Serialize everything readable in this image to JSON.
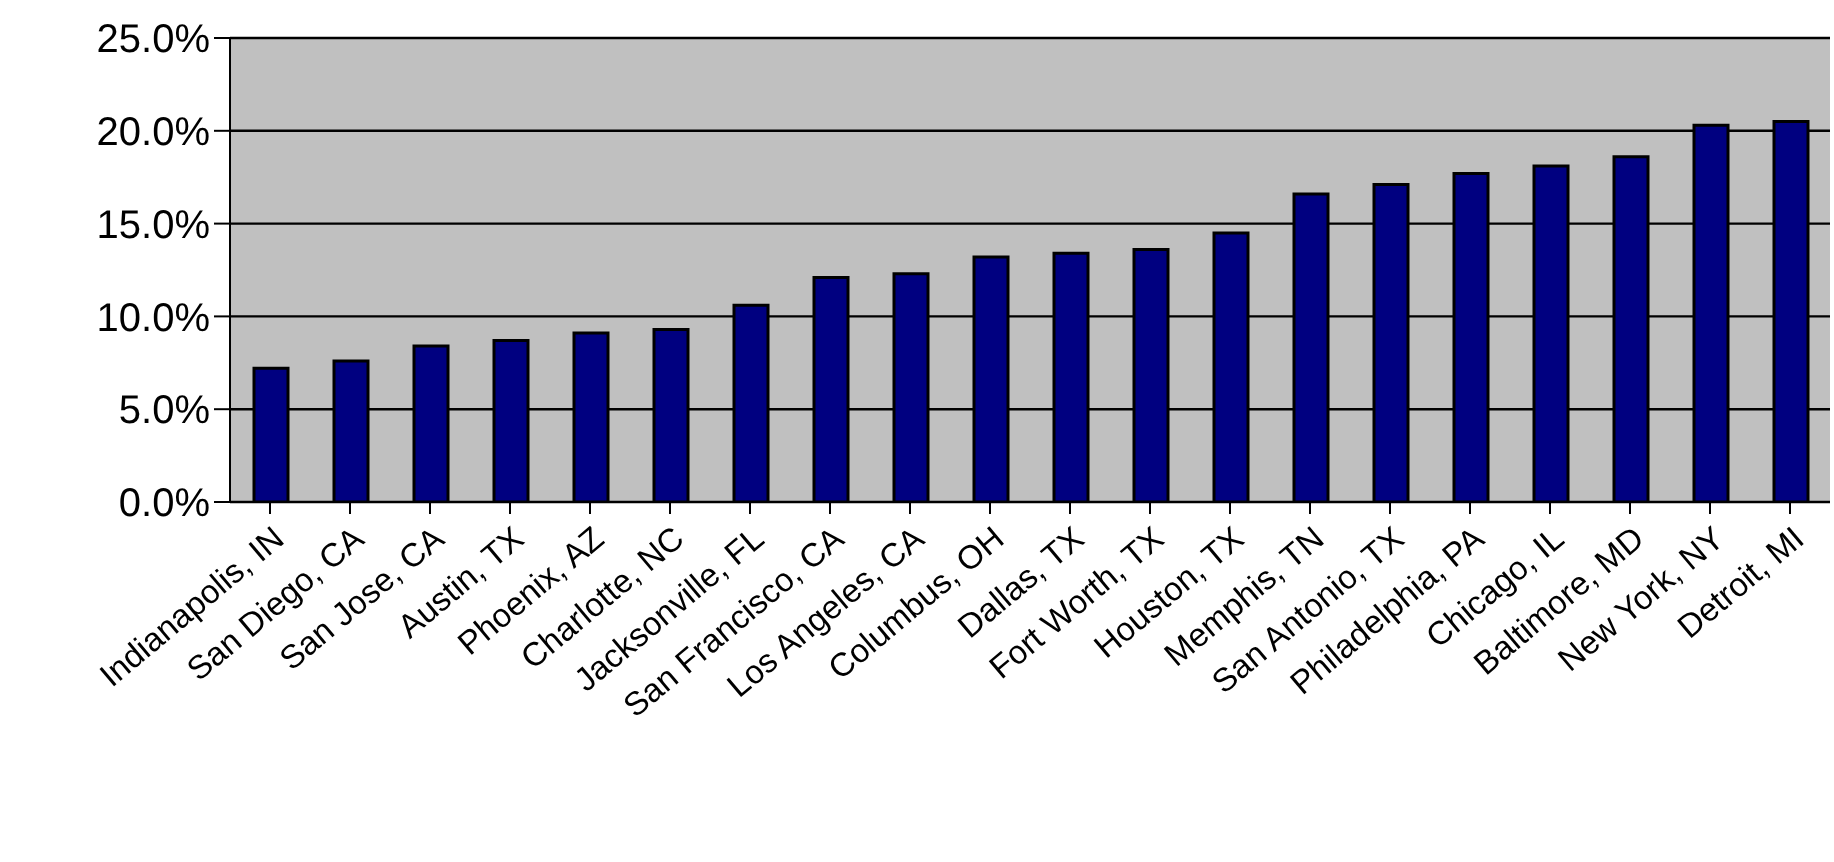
{
  "chart_data": {
    "type": "bar",
    "categories": [
      "Indianapolis, IN",
      "San Diego, CA",
      "San Jose, CA",
      "Austin, TX",
      "Phoenix, AZ",
      "Charlotte, NC",
      "Jacksonville, FL",
      "San Francisco, CA",
      "Los Angeles, CA",
      "Columbus, OH",
      "Dallas, TX",
      "Fort Worth, TX",
      "Houston, TX",
      "Memphis, TN",
      "San Antonio, TX",
      "Philadelphia, PA",
      "Chicago, IL",
      "Baltimore, MD",
      "New York, NY",
      "Detroit, MI"
    ],
    "values": [
      7.2,
      7.6,
      8.4,
      8.7,
      9.1,
      9.3,
      10.6,
      12.1,
      12.3,
      13.2,
      13.4,
      13.6,
      14.5,
      16.6,
      17.1,
      17.7,
      18.1,
      18.6,
      20.3,
      20.5
    ],
    "color": "#000080",
    "ylim": [
      0,
      25
    ],
    "yticks": [
      {
        "value": 0,
        "label": "0.0%"
      },
      {
        "value": 5,
        "label": "5.0%"
      },
      {
        "value": 10,
        "label": "10.0%"
      },
      {
        "value": 15,
        "label": "15.0%"
      },
      {
        "value": 20,
        "label": "20.0%"
      },
      {
        "value": 25,
        "label": "25.0%"
      }
    ],
    "grid": "y",
    "legend": false
  }
}
